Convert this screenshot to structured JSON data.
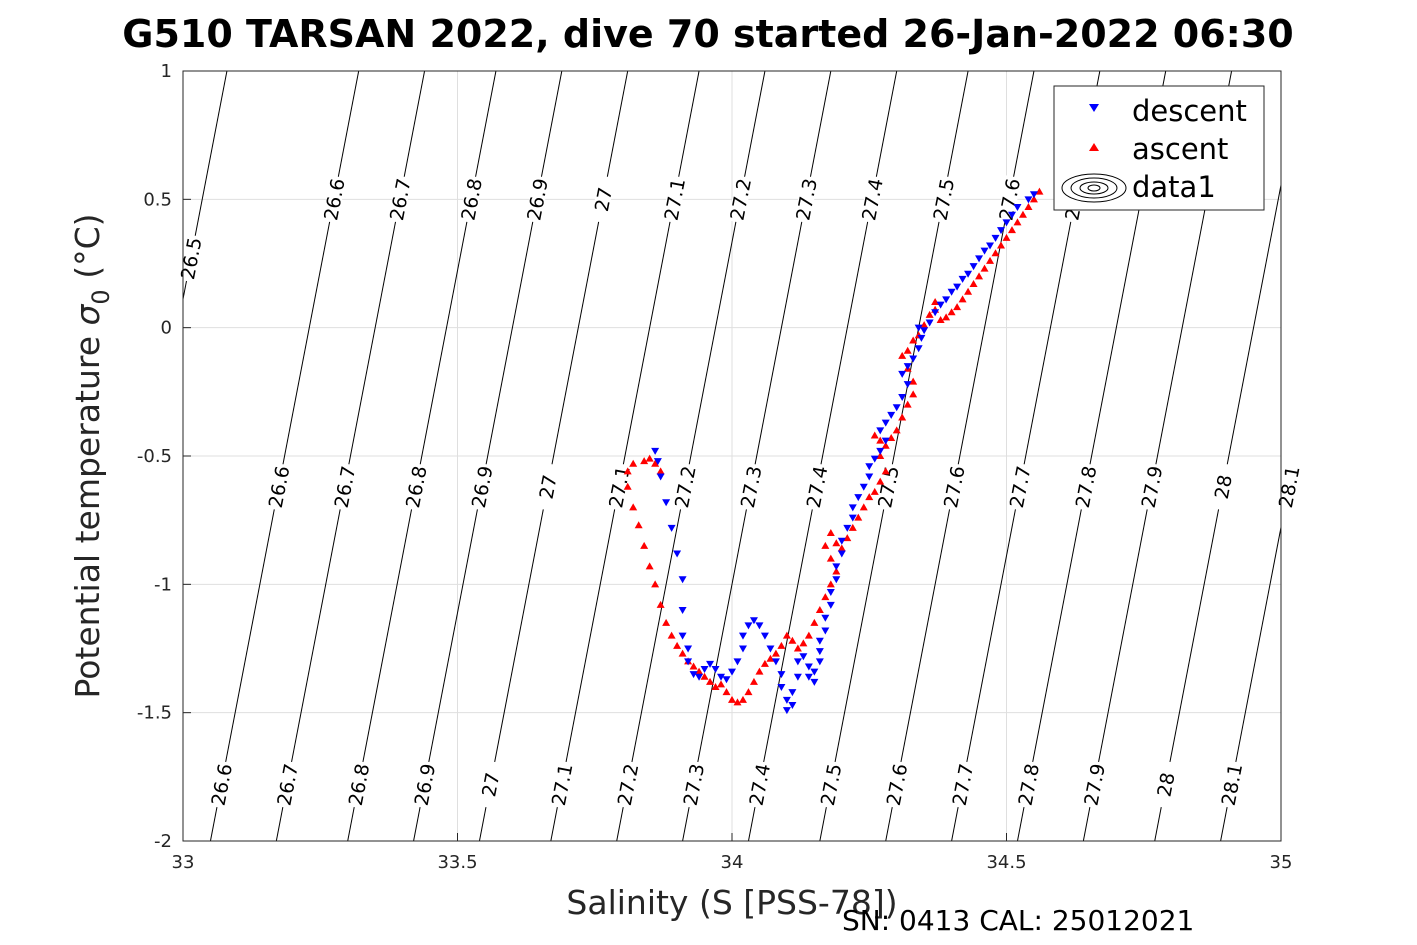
{
  "chart_data": {
    "type": "scatter",
    "title": "G510 TARSAN 2022, dive 70 started 26-Jan-2022 06:30",
    "xlabel": "Salinity (S [PSS-78])",
    "ylabel_main": "Potential temperature ",
    "ylabel_sym": "σ",
    "ylabel_sub": "0",
    "ylabel_unit": " (°C)",
    "footer": "SN: 0413  CAL: 25012021",
    "xlim": [
      33,
      35
    ],
    "ylim": [
      -2,
      1
    ],
    "x_ticks": [
      "33",
      "33.5",
      "34",
      "34.5",
      "35"
    ],
    "y_ticks": [
      "1",
      "0.5",
      "0",
      "-0.5",
      "-1",
      "-1.5",
      "-2"
    ],
    "grid": true,
    "legend": {
      "placement": "top-right",
      "entries": [
        {
          "label": "descent",
          "color": "#0000ff",
          "marker": "triangle-down"
        },
        {
          "label": "ascent",
          "color": "#ff0000",
          "marker": "triangle-up"
        },
        {
          "label": "data1",
          "color": "#000000",
          "marker": "contour"
        }
      ]
    },
    "contours": [
      {
        "level": "26.5",
        "x_at_ymin": 32.81,
        "x_at_ymax": 33.08,
        "labels": [
          {
            "text": "26.5",
            "y": 0.27
          }
        ]
      },
      {
        "level": "26.6",
        "x_at_ymin": 33.05,
        "x_at_ymax": 33.32,
        "labels": [
          {
            "text": "26.6",
            "y": -1.78
          },
          {
            "text": "26.6",
            "y": -0.62
          },
          {
            "text": "26.6",
            "y": 0.5
          }
        ]
      },
      {
        "level": "26.7",
        "x_at_ymin": 33.17,
        "x_at_ymax": 33.44,
        "labels": [
          {
            "text": "26.7",
            "y": -1.78
          },
          {
            "text": "26.7",
            "y": -0.62
          },
          {
            "text": "26.7",
            "y": 0.5
          }
        ]
      },
      {
        "level": "26.8",
        "x_at_ymin": 33.3,
        "x_at_ymax": 33.57,
        "labels": [
          {
            "text": "26.8",
            "y": -1.78
          },
          {
            "text": "26.8",
            "y": -0.62
          },
          {
            "text": "26.8",
            "y": 0.5
          }
        ]
      },
      {
        "level": "26.9",
        "x_at_ymin": 33.42,
        "x_at_ymax": 33.69,
        "labels": [
          {
            "text": "26.9",
            "y": -1.78
          },
          {
            "text": "26.9",
            "y": -0.62
          },
          {
            "text": "26.9",
            "y": 0.5
          }
        ]
      },
      {
        "level": "27",
        "x_at_ymin": 33.54,
        "x_at_ymax": 33.81,
        "labels": [
          {
            "text": "27",
            "y": -1.78
          },
          {
            "text": "27",
            "y": -0.62
          },
          {
            "text": "27",
            "y": 0.5
          }
        ]
      },
      {
        "level": "27.1",
        "x_at_ymin": 33.67,
        "x_at_ymax": 33.94,
        "labels": [
          {
            "text": "27.1",
            "y": -1.78
          },
          {
            "text": "27.1",
            "y": -0.62
          },
          {
            "text": "27.1",
            "y": 0.5
          }
        ]
      },
      {
        "level": "27.2",
        "x_at_ymin": 33.79,
        "x_at_ymax": 34.06,
        "labels": [
          {
            "text": "27.2",
            "y": -1.78
          },
          {
            "text": "27.2",
            "y": -0.62
          },
          {
            "text": "27.2",
            "y": 0.5
          }
        ]
      },
      {
        "level": "27.3",
        "x_at_ymin": 33.91,
        "x_at_ymax": 34.18,
        "labels": [
          {
            "text": "27.3",
            "y": -1.78
          },
          {
            "text": "27.3",
            "y": -0.62
          },
          {
            "text": "27.3",
            "y": 0.5
          }
        ]
      },
      {
        "level": "27.4",
        "x_at_ymin": 34.03,
        "x_at_ymax": 34.3,
        "labels": [
          {
            "text": "27.4",
            "y": -1.78
          },
          {
            "text": "27.4",
            "y": -0.62
          },
          {
            "text": "27.4",
            "y": 0.5
          }
        ]
      },
      {
        "level": "27.5",
        "x_at_ymin": 34.16,
        "x_at_ymax": 34.43,
        "labels": [
          {
            "text": "27.5",
            "y": -1.78
          },
          {
            "text": "27.5",
            "y": -0.62
          },
          {
            "text": "27.5",
            "y": 0.5
          }
        ]
      },
      {
        "level": "27.6",
        "x_at_ymin": 34.28,
        "x_at_ymax": 34.55,
        "labels": [
          {
            "text": "27.6",
            "y": -1.78
          },
          {
            "text": "27.6",
            "y": -0.62
          },
          {
            "text": "27.6",
            "y": 0.5
          }
        ]
      },
      {
        "level": "27.7",
        "x_at_ymin": 34.4,
        "x_at_ymax": 34.67,
        "labels": [
          {
            "text": "27.7",
            "y": -1.78
          },
          {
            "text": "27.7",
            "y": -0.62
          },
          {
            "text": "27.7",
            "y": 0.5
          }
        ]
      },
      {
        "level": "27.8",
        "x_at_ymin": 34.52,
        "x_at_ymax": 34.79,
        "labels": [
          {
            "text": "27.8",
            "y": -1.78
          },
          {
            "text": "27.8",
            "y": -0.62
          }
        ]
      },
      {
        "level": "27.9",
        "x_at_ymin": 34.64,
        "x_at_ymax": 34.91,
        "labels": [
          {
            "text": "27.9",
            "y": -1.78
          },
          {
            "text": "27.9",
            "y": -0.62
          }
        ]
      },
      {
        "level": "28",
        "x_at_ymin": 34.77,
        "x_at_ymax": 35.04,
        "labels": [
          {
            "text": "28",
            "y": -1.78
          },
          {
            "text": "28",
            "y": -0.62
          }
        ]
      },
      {
        "level": "28.1",
        "x_at_ymin": 34.89,
        "x_at_ymax": 35.16,
        "labels": [
          {
            "text": "28.1",
            "y": -1.78
          },
          {
            "text": "28.1",
            "y": -0.62
          }
        ]
      }
    ],
    "series": [
      {
        "name": "descent",
        "color": "#0000ff",
        "marker": "triangle-down",
        "points": [
          [
            34.55,
            0.52
          ],
          [
            34.54,
            0.5
          ],
          [
            34.52,
            0.47
          ],
          [
            34.51,
            0.44
          ],
          [
            34.5,
            0.41
          ],
          [
            34.49,
            0.38
          ],
          [
            34.48,
            0.35
          ],
          [
            34.47,
            0.32
          ],
          [
            34.46,
            0.3
          ],
          [
            34.45,
            0.27
          ],
          [
            34.44,
            0.24
          ],
          [
            34.43,
            0.21
          ],
          [
            34.42,
            0.19
          ],
          [
            34.41,
            0.16
          ],
          [
            34.4,
            0.14
          ],
          [
            34.39,
            0.11
          ],
          [
            34.38,
            0.09
          ],
          [
            34.37,
            0.06
          ],
          [
            34.36,
            0.02
          ],
          [
            34.35,
            -0.01
          ],
          [
            34.34,
            0.0
          ],
          [
            34.345,
            -0.04
          ],
          [
            34.34,
            -0.08
          ],
          [
            34.33,
            -0.12
          ],
          [
            34.32,
            -0.15
          ],
          [
            34.31,
            -0.18
          ],
          [
            34.32,
            -0.22
          ],
          [
            34.31,
            -0.27
          ],
          [
            34.3,
            -0.31
          ],
          [
            34.29,
            -0.34
          ],
          [
            34.28,
            -0.37
          ],
          [
            34.27,
            -0.4
          ],
          [
            34.28,
            -0.44
          ],
          [
            34.27,
            -0.48
          ],
          [
            34.26,
            -0.51
          ],
          [
            34.25,
            -0.54
          ],
          [
            34.25,
            -0.58
          ],
          [
            34.24,
            -0.62
          ],
          [
            34.23,
            -0.66
          ],
          [
            34.22,
            -0.7
          ],
          [
            34.22,
            -0.74
          ],
          [
            34.21,
            -0.78
          ],
          [
            34.2,
            -0.83
          ],
          [
            34.2,
            -0.88
          ],
          [
            34.19,
            -0.93
          ],
          [
            34.19,
            -0.98
          ],
          [
            34.18,
            -1.03
          ],
          [
            34.18,
            -1.08
          ],
          [
            34.17,
            -1.13
          ],
          [
            34.17,
            -1.18
          ],
          [
            34.16,
            -1.22
          ],
          [
            34.16,
            -1.26
          ],
          [
            34.16,
            -1.3
          ],
          [
            34.15,
            -1.34
          ],
          [
            34.15,
            -1.38
          ],
          [
            34.14,
            -1.36
          ],
          [
            34.14,
            -1.32
          ],
          [
            34.13,
            -1.28
          ],
          [
            34.12,
            -1.3
          ],
          [
            34.12,
            -1.36
          ],
          [
            34.11,
            -1.42
          ],
          [
            34.11,
            -1.47
          ],
          [
            34.1,
            -1.49
          ],
          [
            34.1,
            -1.45
          ],
          [
            34.09,
            -1.4
          ],
          [
            34.09,
            -1.35
          ],
          [
            34.08,
            -1.3
          ],
          [
            34.07,
            -1.25
          ],
          [
            34.06,
            -1.2
          ],
          [
            34.05,
            -1.16
          ],
          [
            34.04,
            -1.14
          ],
          [
            34.03,
            -1.16
          ],
          [
            34.02,
            -1.2
          ],
          [
            34.02,
            -1.25
          ],
          [
            34.01,
            -1.3
          ],
          [
            34.0,
            -1.34
          ],
          [
            33.99,
            -1.37
          ],
          [
            33.98,
            -1.36
          ],
          [
            33.97,
            -1.33
          ],
          [
            33.96,
            -1.31
          ],
          [
            33.95,
            -1.33
          ],
          [
            33.94,
            -1.36
          ],
          [
            33.93,
            -1.35
          ],
          [
            33.92,
            -1.3
          ],
          [
            33.92,
            -1.25
          ],
          [
            33.91,
            -1.2
          ],
          [
            33.91,
            -1.1
          ],
          [
            33.91,
            -0.98
          ],
          [
            33.9,
            -0.88
          ],
          [
            33.89,
            -0.78
          ],
          [
            33.88,
            -0.68
          ],
          [
            33.87,
            -0.58
          ],
          [
            33.865,
            -0.52
          ],
          [
            33.86,
            -0.48
          ]
        ]
      },
      {
        "name": "ascent",
        "color": "#ff0000",
        "marker": "triangle-up",
        "points": [
          [
            34.56,
            0.53
          ],
          [
            34.55,
            0.5
          ],
          [
            34.54,
            0.47
          ],
          [
            34.53,
            0.44
          ],
          [
            34.52,
            0.41
          ],
          [
            34.51,
            0.38
          ],
          [
            34.5,
            0.35
          ],
          [
            34.49,
            0.32
          ],
          [
            34.48,
            0.29
          ],
          [
            34.47,
            0.26
          ],
          [
            34.46,
            0.23
          ],
          [
            34.45,
            0.2
          ],
          [
            34.44,
            0.17
          ],
          [
            34.43,
            0.14
          ],
          [
            34.42,
            0.11
          ],
          [
            34.41,
            0.08
          ],
          [
            34.4,
            0.06
          ],
          [
            34.39,
            0.04
          ],
          [
            34.38,
            0.03
          ],
          [
            34.37,
            0.07
          ],
          [
            34.37,
            0.1
          ],
          [
            34.36,
            0.05
          ],
          [
            34.35,
            0.01
          ],
          [
            34.34,
            -0.03
          ],
          [
            34.33,
            -0.05
          ],
          [
            34.32,
            -0.09
          ],
          [
            34.31,
            -0.11
          ],
          [
            34.32,
            -0.16
          ],
          [
            34.33,
            -0.21
          ],
          [
            34.33,
            -0.26
          ],
          [
            34.32,
            -0.3
          ],
          [
            34.31,
            -0.35
          ],
          [
            34.3,
            -0.4
          ],
          [
            34.29,
            -0.43
          ],
          [
            34.28,
            -0.46
          ],
          [
            34.27,
            -0.44
          ],
          [
            34.26,
            -0.42
          ],
          [
            34.27,
            -0.5
          ],
          [
            34.28,
            -0.56
          ],
          [
            34.27,
            -0.6
          ],
          [
            34.26,
            -0.64
          ],
          [
            34.25,
            -0.66
          ],
          [
            34.24,
            -0.7
          ],
          [
            34.23,
            -0.74
          ],
          [
            34.22,
            -0.78
          ],
          [
            34.21,
            -0.82
          ],
          [
            34.2,
            -0.86
          ],
          [
            34.19,
            -0.84
          ],
          [
            34.18,
            -0.8
          ],
          [
            34.17,
            -0.85
          ],
          [
            34.18,
            -0.9
          ],
          [
            34.19,
            -0.95
          ],
          [
            34.18,
            -1.0
          ],
          [
            34.17,
            -1.05
          ],
          [
            34.16,
            -1.1
          ],
          [
            34.15,
            -1.15
          ],
          [
            34.14,
            -1.2
          ],
          [
            34.13,
            -1.23
          ],
          [
            34.12,
            -1.25
          ],
          [
            34.11,
            -1.22
          ],
          [
            34.1,
            -1.2
          ],
          [
            34.09,
            -1.24
          ],
          [
            34.08,
            -1.27
          ],
          [
            34.07,
            -1.29
          ],
          [
            34.06,
            -1.31
          ],
          [
            34.05,
            -1.34
          ],
          [
            34.04,
            -1.38
          ],
          [
            34.03,
            -1.42
          ],
          [
            34.02,
            -1.45
          ],
          [
            34.01,
            -1.46
          ],
          [
            34.0,
            -1.45
          ],
          [
            33.99,
            -1.42
          ],
          [
            33.98,
            -1.39
          ],
          [
            33.97,
            -1.4
          ],
          [
            33.96,
            -1.38
          ],
          [
            33.95,
            -1.36
          ],
          [
            33.94,
            -1.34
          ],
          [
            33.93,
            -1.32
          ],
          [
            33.92,
            -1.3
          ],
          [
            33.91,
            -1.27
          ],
          [
            33.9,
            -1.24
          ],
          [
            33.89,
            -1.2
          ],
          [
            33.88,
            -1.15
          ],
          [
            33.87,
            -1.08
          ],
          [
            33.86,
            -1.0
          ],
          [
            33.85,
            -0.93
          ],
          [
            33.84,
            -0.85
          ],
          [
            33.83,
            -0.77
          ],
          [
            33.82,
            -0.7
          ],
          [
            33.81,
            -0.62
          ],
          [
            33.81,
            -0.56
          ],
          [
            33.82,
            -0.53
          ],
          [
            33.84,
            -0.52
          ],
          [
            33.85,
            -0.51
          ],
          [
            33.86,
            -0.53
          ],
          [
            33.87,
            -0.56
          ]
        ]
      }
    ]
  }
}
